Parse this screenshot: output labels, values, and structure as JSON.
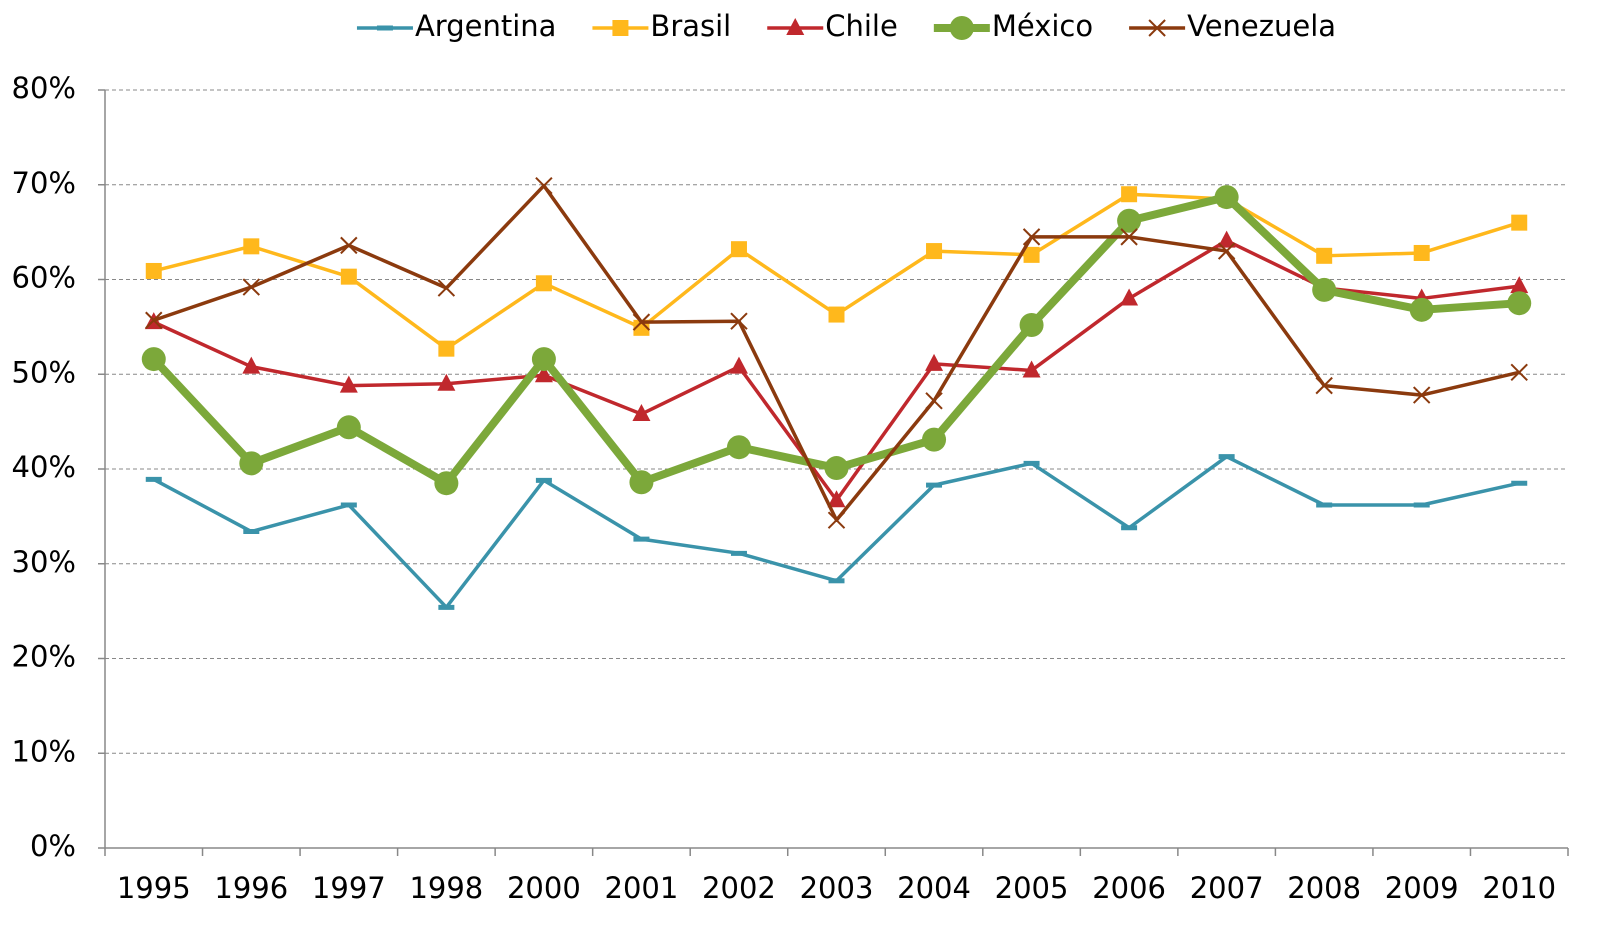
{
  "chart_data": {
    "type": "line",
    "categories": [
      "1995",
      "1996",
      "1997",
      "1998",
      "2000",
      "2001",
      "2002",
      "2003",
      "2004",
      "2005",
      "2006",
      "2007",
      "2008",
      "2009",
      "2010"
    ],
    "series": [
      {
        "name": "Argentina",
        "color": "#3a93aa",
        "marker": "dash",
        "values": [
          38.9,
          33.4,
          36.2,
          25.4,
          38.8,
          32.6,
          31.1,
          28.2,
          38.3,
          40.6,
          33.8,
          41.3,
          36.2,
          36.2,
          38.5
        ]
      },
      {
        "name": "Brasil",
        "color": "#ffb81c",
        "marker": "square",
        "values": [
          60.9,
          63.5,
          60.3,
          52.7,
          59.6,
          54.9,
          63.2,
          56.3,
          63.0,
          62.6,
          69.0,
          68.5,
          62.5,
          62.8,
          66.0
        ]
      },
      {
        "name": "Chile",
        "color": "#c0282d",
        "marker": "triangle",
        "values": [
          55.5,
          50.8,
          48.8,
          49.0,
          49.9,
          45.8,
          50.8,
          36.7,
          51.1,
          50.4,
          58.0,
          64.1,
          59.1,
          58.0,
          59.3
        ]
      },
      {
        "name": "México",
        "color": "#7ca83a",
        "marker": "circle",
        "values": [
          51.6,
          40.6,
          44.4,
          38.5,
          51.6,
          38.6,
          42.3,
          40.1,
          43.1,
          55.2,
          66.2,
          68.7,
          58.9,
          56.8,
          57.5
        ]
      },
      {
        "name": "Venezuela",
        "color": "#8b3a0e",
        "marker": "x",
        "values": [
          55.7,
          59.2,
          63.6,
          59.1,
          69.9,
          55.5,
          55.6,
          34.6,
          47.2,
          64.5,
          64.5,
          63.0,
          48.8,
          47.8,
          50.2
        ]
      }
    ],
    "ylim": [
      0,
      80
    ],
    "yticks": [
      {
        "value": 0,
        "label": "0%"
      },
      {
        "value": 10,
        "label": "10%"
      },
      {
        "value": 20,
        "label": "20%"
      },
      {
        "value": 30,
        "label": "30%"
      },
      {
        "value": 40,
        "label": "40%"
      },
      {
        "value": 50,
        "label": "50%"
      },
      {
        "value": 60,
        "label": "60%"
      },
      {
        "value": 70,
        "label": "70%"
      },
      {
        "value": 80,
        "label": "80%"
      }
    ],
    "grid": true,
    "legend": "top"
  }
}
